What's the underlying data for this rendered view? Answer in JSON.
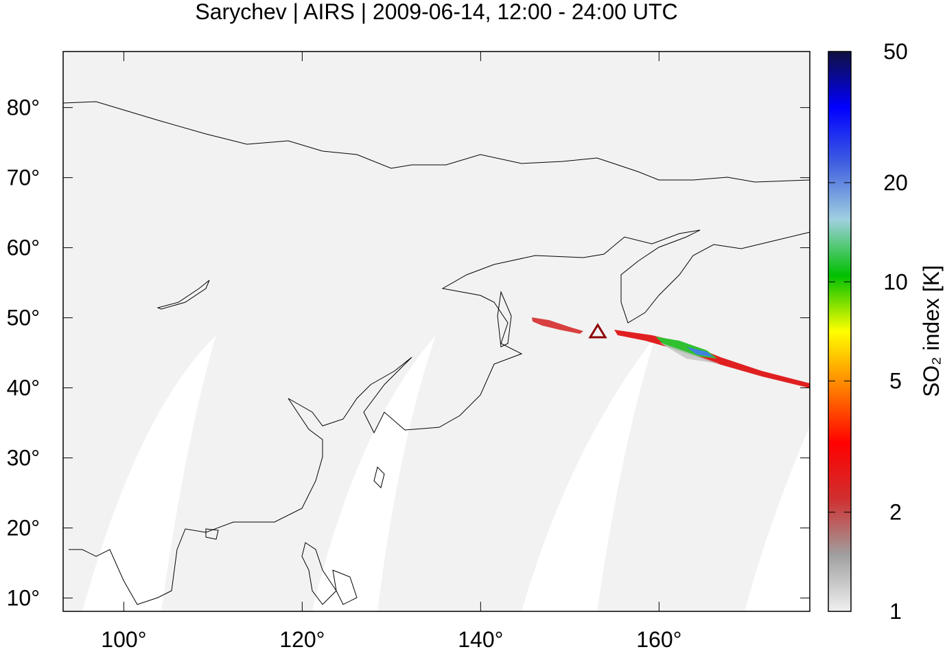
{
  "chart_data": {
    "type": "map",
    "title": "Sarychev | AIRS | 2009-06-14, 12:00 - 24:00 UTC",
    "xlim": [
      93.2,
      176.9
    ],
    "xticks": [
      {
        "value": 100,
        "label": "100°"
      },
      {
        "value": 120,
        "label": "120°"
      },
      {
        "value": 140,
        "label": "140°"
      },
      {
        "value": 160,
        "label": "160°"
      }
    ],
    "ylim": [
      8.1,
      88
    ],
    "yticks": [
      {
        "value": 10,
        "label": "10°"
      },
      {
        "value": 20,
        "label": "20°"
      },
      {
        "value": 30,
        "label": "30°"
      },
      {
        "value": 40,
        "label": "40°"
      },
      {
        "value": 50,
        "label": "50°"
      },
      {
        "value": 60,
        "label": "60°"
      },
      {
        "value": 70,
        "label": "70°"
      },
      {
        "value": 80,
        "label": "80°"
      }
    ],
    "colorbar": {
      "label": "SO₂ index [K]",
      "lim": [
        1,
        50
      ],
      "log": true,
      "ticks": [
        1,
        2,
        5,
        10,
        20,
        50
      ],
      "colors": [
        "#f0f0f0",
        "#a0a0a0",
        "#d03030",
        "#ff0000",
        "#ff8000",
        "#ffff00",
        "#00c000",
        "#a0d0e0",
        "#4060e0",
        "#0000ff",
        "#101040"
      ]
    }
  }
}
